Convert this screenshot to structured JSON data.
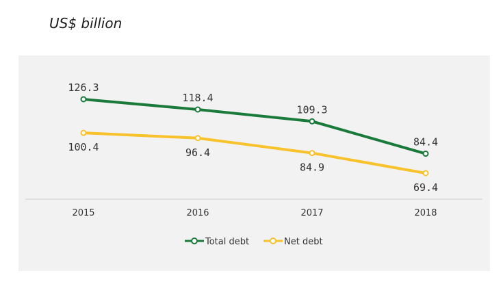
{
  "header": {
    "unit_title": "US$ billion"
  },
  "colors": {
    "total": "#1a7a3a",
    "net": "#f8c22c",
    "axis": "#cfcfcf",
    "background": "#f2f2f2"
  },
  "chart_data": {
    "type": "line",
    "categories": [
      "2015",
      "2016",
      "2017",
      "2018"
    ],
    "series": [
      {
        "name": "Total debt",
        "values": [
          126.3,
          118.4,
          109.3,
          84.4
        ]
      },
      {
        "name": "Net debt",
        "values": [
          100.4,
          96.4,
          84.9,
          69.4
        ]
      }
    ],
    "value_labels": {
      "total": [
        "126.3",
        "118.4",
        "109.3",
        "84.4"
      ],
      "net": [
        "100.4",
        "96.4",
        "84.9",
        "69.4"
      ]
    },
    "ylim": [
      45,
      145
    ],
    "grid": false,
    "legend": "bottom-center"
  }
}
